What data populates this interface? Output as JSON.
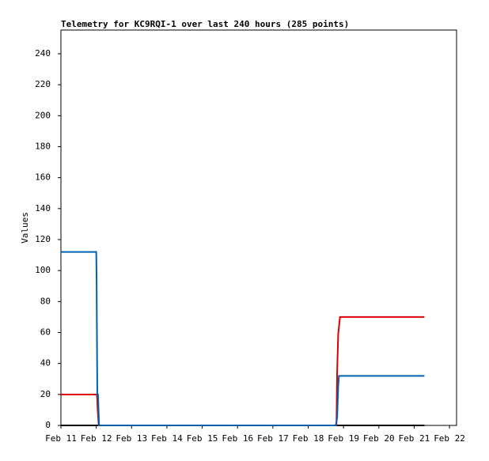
{
  "chart_data": {
    "type": "line",
    "title": "Telemetry for KC9RQI-1 over last 240 hours (285 points)",
    "y_label": "Values",
    "xlim": [
      0,
      11.2
    ],
    "ylim": [
      0,
      255.3
    ],
    "xticks": [
      {
        "value": 0,
        "label": "Feb 11"
      },
      {
        "value": 1,
        "label": "Feb 12"
      },
      {
        "value": 2,
        "label": "Feb 13"
      },
      {
        "value": 3,
        "label": "Feb 14"
      },
      {
        "value": 4,
        "label": "Feb 15"
      },
      {
        "value": 5,
        "label": "Feb 16"
      },
      {
        "value": 6,
        "label": "Feb 17"
      },
      {
        "value": 7,
        "label": "Feb 18"
      },
      {
        "value": 8,
        "label": "Feb 19"
      },
      {
        "value": 9,
        "label": "Feb 20"
      },
      {
        "value": 10,
        "label": "Feb 21"
      },
      {
        "value": 11,
        "label": "Feb 22"
      }
    ],
    "yticks": [
      0,
      20,
      40,
      60,
      80,
      100,
      120,
      140,
      160,
      180,
      200,
      220,
      240
    ],
    "series": [
      {
        "color": "#000000",
        "x": [
          0,
          10.29
        ],
        "values": [
          0,
          0
        ]
      },
      {
        "color": "#dd0000",
        "x": [
          0,
          1.02,
          1.04,
          1.07,
          7.8,
          7.82,
          7.85,
          7.9,
          10.29
        ],
        "values": [
          20,
          20,
          10,
          0,
          0,
          35,
          59,
          70,
          70
        ]
      },
      {
        "color": "#0060b0",
        "x": [
          0,
          1.0,
          1.01,
          1.02,
          1.03,
          1.05,
          1.08,
          7.78,
          7.82,
          7.85,
          7.87,
          10.29
        ],
        "values": [
          112,
          112,
          94,
          56,
          20,
          20,
          0,
          0,
          5,
          25,
          32,
          32
        ]
      }
    ]
  }
}
